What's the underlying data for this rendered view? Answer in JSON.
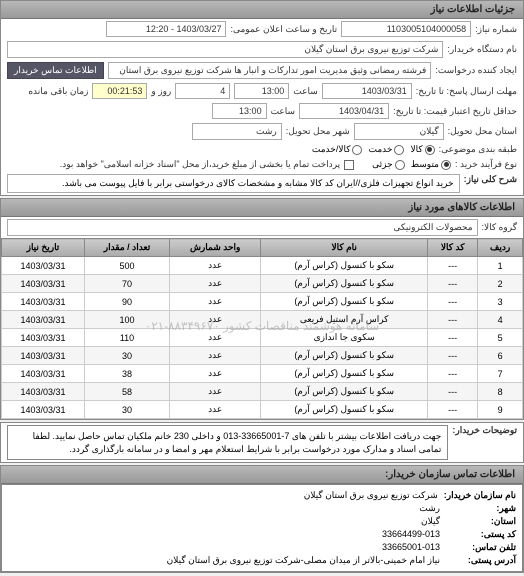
{
  "header": {
    "title": "جزئیات اطلاعات نیاز"
  },
  "form": {
    "need_no_label": "شماره نیاز:",
    "need_no": "1103005104000058",
    "announce_label": "تاریخ و ساعت اعلان عمومی:",
    "announce": "1403/03/27 - 12:20",
    "buyer_label": "نام دستگاه خریدار:",
    "buyer": "شرکت توزیع نیروی برق استان گیلان",
    "requester_label": "ایجاد کننده درخواست:",
    "requester": "فرشته رمضانی وثیق مدیریت امور تدارکات و انبار ها شرکت توزیع نیروی برق استان",
    "contact_btn": "اطلاعات تماس خریدار",
    "deadline_send_label": "مهلت ارسال پاسخ: تا تاریخ:",
    "deadline_send_date": "1403/03/31",
    "deadline_send_time_label": "ساعت",
    "deadline_send_time": "13:00",
    "remaining_label": "زمان باقی مانده",
    "remaining_days": "4",
    "remaining_days_label": "روز و",
    "remaining_time": "00:21:53",
    "validity_label": "حداقل تاریخ اعتبار قیمت: تا تاریخ:",
    "validity_date": "1403/04/31",
    "validity_time_label": "ساعت",
    "validity_time": "13:00",
    "delivery_loc_label": "استان محل تحویل:",
    "delivery_loc": "گیلان",
    "delivery_city_label": "شهر محل تحویل:",
    "delivery_city": "رشت",
    "packaging_label": "طبقه بندی موضوعی:",
    "packaging_options": [
      "کالا",
      "خدمت",
      "کالا/خدمت"
    ],
    "packaging_selected": 0,
    "method_label": "نوع فرآیند خرید :",
    "method_options": [
      "متوسط",
      "جزئی"
    ],
    "method_selected": 0,
    "payment_cb_label": "پرداخت تمام یا بخشی از مبلغ خرید،از محل \"اسناد خزانه اسلامی\" خواهد بود.",
    "payment_cb": false,
    "need_desc_label": "شرح کلی نیاز:",
    "need_desc": "خرید انواع تجهیزات فلزی//ایران کد کالا مشابه و مشخصات کالای درخواستی برابر با فایل پیوست می باشد."
  },
  "items_header": "اطلاعات کالاهای مورد نیاز",
  "group_label": "گروه کالا:",
  "group_value": "محصولات الکترونیکی",
  "table": {
    "columns": [
      "ردیف",
      "کد کالا",
      "نام کالا",
      "واحد شمارش",
      "تعداد / مقدار",
      "تاریخ نیاز"
    ],
    "rows": [
      [
        "1",
        "---",
        "سکو با کنسول (کراس آرم)",
        "عدد",
        "500",
        "1403/03/31"
      ],
      [
        "2",
        "---",
        "سکو با کنسول (کراس آرم)",
        "عدد",
        "70",
        "1403/03/31"
      ],
      [
        "3",
        "---",
        "سکو با کنسول (کراس آرم)",
        "عدد",
        "90",
        "1403/03/31"
      ],
      [
        "4",
        "---",
        "کراس آرم استیل فریعی",
        "عدد",
        "100",
        "1403/03/31"
      ],
      [
        "5",
        "---",
        "سکوی جا اندازی",
        "عدد",
        "110",
        "1403/03/31"
      ],
      [
        "6",
        "---",
        "سکو با کنسول (کراس آرم)",
        "عدد",
        "30",
        "1403/03/31"
      ],
      [
        "7",
        "---",
        "سکو با کنسول (کراس آرم)",
        "عدد",
        "38",
        "1403/03/31"
      ],
      [
        "8",
        "---",
        "سکو با کنسول (کراس آرم)",
        "عدد",
        "58",
        "1403/03/31"
      ],
      [
        "9",
        "---",
        "سکو با کنسول (کراس آرم)",
        "عدد",
        "30",
        "1403/03/31"
      ]
    ],
    "watermark": "سامانه هوشمند مناقصات کشور ۸۸۳۴۹۶۷۰-۰۲۱",
    "header_bg": "#bbbbbb",
    "border_color": "#888888"
  },
  "notes_label": "توضیحات خریدار:",
  "notes": "جهت دریافت اطلاعات بیشتر با تلفن های 7-33665001-013 و داخلی 230 خانم ملکیان تماس حاصل نمایید. لطفا تمامی اسناد و مدارک مورد درخواست برابر با شرایط استعلام مهر و امضا و در سامانه بارگذاری گردد.",
  "contact_header": "اطلاعات تماس سازمان خریدار:",
  "contact": {
    "org_label": "نام سازمان خریدار:",
    "org": "شرکت توزیع نیروی برق استان گیلان",
    "city_label": "شهر:",
    "city": "رشت",
    "province_label": "استان:",
    "province": "گیلان",
    "postal_label": "کد پستی:",
    "postal": "33664499-013",
    "phone_label": "تلفن تماس:",
    "phone": "33665001-013",
    "addr_label": "آدرس پستی:",
    "addr": "نیاز امام خمینی-بالاتر از میدان مصلی-شرکت توزیع نیروی برق استان گیلان"
  },
  "colors": {
    "header_bg": "#a8a8a8",
    "link_btn": "#555566"
  }
}
